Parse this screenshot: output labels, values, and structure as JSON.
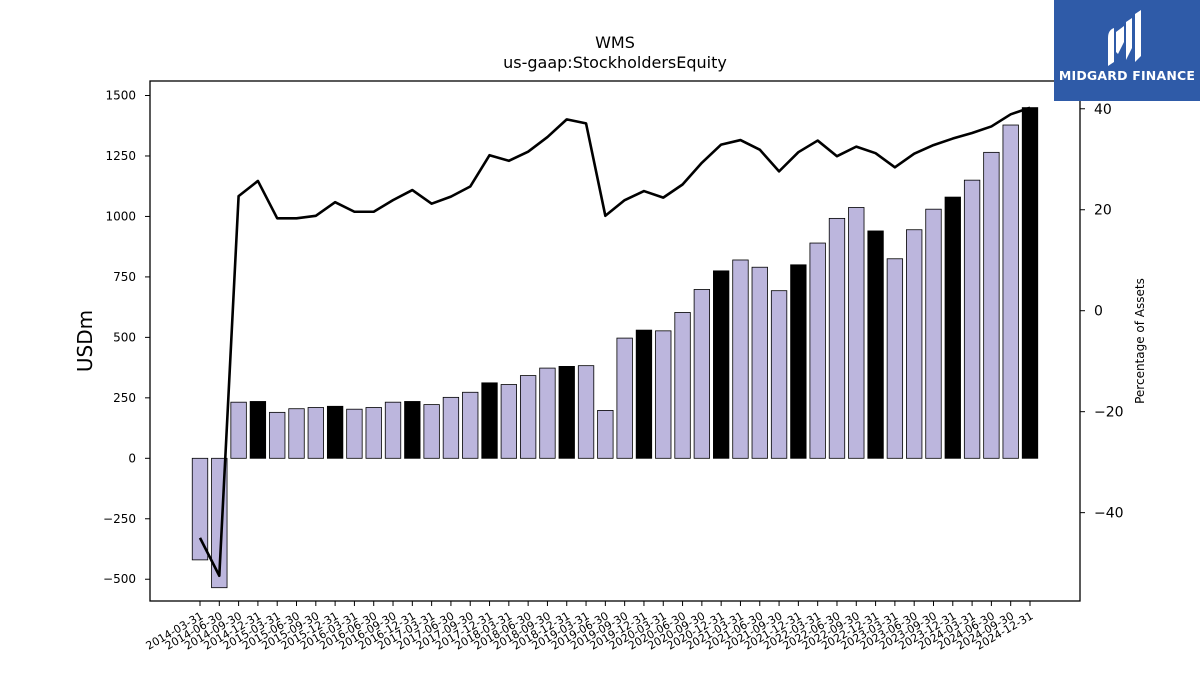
{
  "brand": {
    "name": "MIDGARD FINANCE",
    "bg_color": "#2f5ba8",
    "icon": "midgard-logo-icon"
  },
  "colors": {
    "bar_fill": "#bcb6dd",
    "bar_highlight": "#000000",
    "line": "#000000"
  },
  "chart_data": {
    "type": "bar",
    "title": "WMS",
    "subtitle": "us-gaap:StockholdersEquity",
    "ylabel": "USDm",
    "y2label": "Percentage of Assets",
    "ylim": [
      -590,
      1560
    ],
    "y2lim": [
      -57.5,
      45.5
    ],
    "yticks": [
      -500,
      -250,
      0,
      250,
      500,
      750,
      1000,
      1250,
      1500
    ],
    "y2ticks": [
      -40,
      -20,
      0,
      20,
      40
    ],
    "categories": [
      "2014-03-31",
      "2014-06-30",
      "2014-09-30",
      "2014-12-31",
      "2015-03-31",
      "2015-06-30",
      "2015-09-30",
      "2015-12-31",
      "2016-03-31",
      "2016-06-30",
      "2016-09-30",
      "2016-12-31",
      "2017-03-31",
      "2017-06-30",
      "2017-09-30",
      "2017-12-31",
      "2018-03-31",
      "2018-06-30",
      "2018-09-30",
      "2018-12-31",
      "2019-03-31",
      "2019-06-30",
      "2019-09-30",
      "2019-12-31",
      "2020-03-31",
      "2020-06-30",
      "2020-09-30",
      "2020-12-31",
      "2021-03-31",
      "2021-06-30",
      "2021-09-30",
      "2021-12-31",
      "2022-03-31",
      "2022-06-30",
      "2022-09-30",
      "2022-12-31",
      "2023-03-31",
      "2023-06-30",
      "2023-09-30",
      "2023-12-31",
      "2024-03-31",
      "2024-06-30",
      "2024-09-30",
      "2024-12-31"
    ],
    "series": [
      {
        "kind": "bar",
        "axis": "left",
        "values": [
          -420,
          -535,
          232,
          235,
          190,
          205,
          210,
          215,
          203,
          210,
          232,
          235,
          222,
          252,
          273,
          312,
          305,
          342,
          373,
          380,
          383,
          198,
          497,
          530,
          527,
          603,
          698,
          775,
          820,
          790,
          693,
          800,
          890,
          992,
          1037,
          940,
          825,
          945,
          1030,
          1080,
          1150,
          1265,
          1378,
          1450
        ],
        "highlight": [
          false,
          false,
          false,
          true,
          false,
          false,
          false,
          true,
          false,
          false,
          false,
          true,
          false,
          false,
          false,
          true,
          false,
          false,
          false,
          true,
          false,
          false,
          false,
          true,
          false,
          false,
          false,
          true,
          false,
          false,
          false,
          true,
          false,
          false,
          false,
          true,
          false,
          false,
          false,
          true,
          false,
          false,
          false,
          true
        ]
      },
      {
        "kind": "line",
        "axis": "right",
        "values": [
          -45,
          -52.5,
          22.7,
          25.7,
          18.3,
          18.3,
          18.8,
          21.5,
          19.6,
          19.6,
          21.9,
          23.9,
          21.2,
          22.6,
          24.6,
          30.8,
          29.7,
          31.5,
          34.4,
          37.9,
          37.1,
          18.8,
          21.9,
          23.7,
          22.4,
          25.0,
          29.3,
          32.9,
          33.8,
          31.9,
          27.6,
          31.4,
          33.7,
          30.6,
          32.5,
          31.2,
          28.4,
          31.1,
          32.8,
          34.1,
          35.2,
          36.5,
          38.9,
          40.2
        ]
      }
    ],
    "grid": false,
    "legend": "none"
  }
}
